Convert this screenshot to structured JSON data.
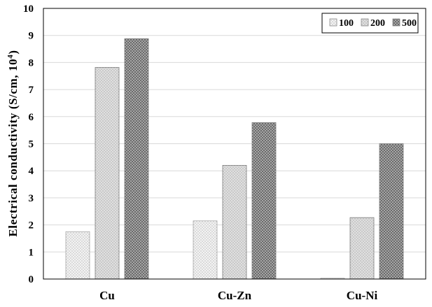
{
  "chart_data": {
    "type": "bar",
    "ylabel": "Electrical conductivity (S/cm, 10",
    "ylabel_sup": "4",
    "ylabel_close": ")",
    "ylim": [
      0,
      10
    ],
    "yticks": [
      "0",
      "1",
      "2",
      "3",
      "4",
      "5",
      "6",
      "7",
      "8",
      "9",
      "10"
    ],
    "grid": true,
    "legend_position": "top-right",
    "categories": [
      "Cu",
      "Cu-Zn",
      "Cu-Ni"
    ],
    "series": [
      {
        "name": "100",
        "values": [
          1.75,
          2.15,
          0.03
        ],
        "color": "#f3f3f3",
        "dot": "#bdbdbd"
      },
      {
        "name": "200",
        "values": [
          7.82,
          4.2,
          2.27
        ],
        "color": "#cfcfcf",
        "dot": "#ffffff"
      },
      {
        "name": "500",
        "values": [
          8.88,
          5.78,
          5.0
        ],
        "color": "#6b6b6b",
        "dot": "#cfcfcf"
      }
    ]
  }
}
